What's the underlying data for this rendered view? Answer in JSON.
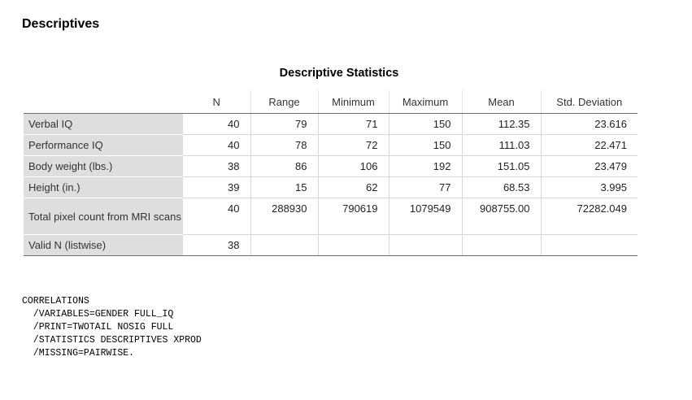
{
  "section_title": "Descriptives",
  "table": {
    "title": "Descriptive Statistics",
    "columns": [
      "N",
      "Range",
      "Minimum",
      "Maximum",
      "Mean",
      "Std. Deviation"
    ],
    "rows": [
      {
        "label": "Verbal IQ",
        "values": [
          "40",
          "79",
          "71",
          "150",
          "112.35",
          "23.616"
        ]
      },
      {
        "label": "Performance IQ",
        "values": [
          "40",
          "78",
          "72",
          "150",
          "111.03",
          "22.471"
        ]
      },
      {
        "label": "Body weight (lbs.)",
        "values": [
          "38",
          "86",
          "106",
          "192",
          "151.05",
          "23.479"
        ]
      },
      {
        "label": "Height (in.)",
        "values": [
          "39",
          "15",
          "62",
          "77",
          "68.53",
          "3.995"
        ]
      },
      {
        "label": "Total pixel count from MRI scans",
        "values": [
          "40",
          "288930",
          "790619",
          "1079549",
          "908755.00",
          "72282.049"
        ]
      },
      {
        "label": "Valid N (listwise)",
        "values": [
          "38",
          "",
          "",
          "",
          "",
          ""
        ]
      }
    ]
  },
  "syntax": {
    "lines": [
      "CORRELATIONS",
      "  /VARIABLES=GENDER FULL_IQ",
      "  /PRINT=TWOTAIL NOSIG FULL",
      "  /STATISTICS DESCRIPTIVES XPROD",
      "  /MISSING=PAIRWISE."
    ]
  }
}
